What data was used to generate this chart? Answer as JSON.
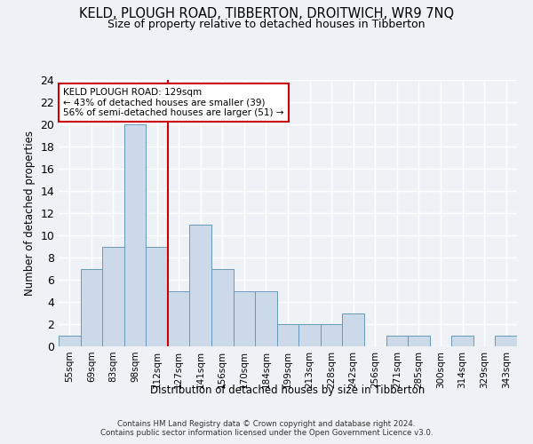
{
  "title": "KELD, PLOUGH ROAD, TIBBERTON, DROITWICH, WR9 7NQ",
  "subtitle": "Size of property relative to detached houses in Tibberton",
  "xlabel": "Distribution of detached houses by size in Tibberton",
  "ylabel": "Number of detached properties",
  "bar_labels": [
    "55sqm",
    "69sqm",
    "83sqm",
    "98sqm",
    "112sqm",
    "127sqm",
    "141sqm",
    "156sqm",
    "170sqm",
    "184sqm",
    "199sqm",
    "213sqm",
    "228sqm",
    "242sqm",
    "256sqm",
    "271sqm",
    "285sqm",
    "300sqm",
    "314sqm",
    "329sqm",
    "343sqm"
  ],
  "bar_values": [
    1,
    7,
    9,
    20,
    9,
    5,
    11,
    7,
    5,
    5,
    2,
    2,
    2,
    3,
    0,
    1,
    1,
    0,
    1,
    0,
    1
  ],
  "bar_color": "#ccd9e8",
  "bar_edge_color": "#6699bb",
  "highlight_line_index": 4,
  "highlight_line_color": "#cc0000",
  "annotation_text": "KELD PLOUGH ROAD: 129sqm\n← 43% of detached houses are smaller (39)\n56% of semi-detached houses are larger (51) →",
  "annotation_box_color": "#ffffff",
  "annotation_box_edge": "#cc0000",
  "ylim": [
    0,
    24
  ],
  "yticks": [
    0,
    2,
    4,
    6,
    8,
    10,
    12,
    14,
    16,
    18,
    20,
    22,
    24
  ],
  "footer_line1": "Contains HM Land Registry data © Crown copyright and database right 2024.",
  "footer_line2": "Contains public sector information licensed under the Open Government Licence v3.0.",
  "background_color": "#eef2f7",
  "plot_background_color": "#eef2f7",
  "grid_color": "#ffffff"
}
